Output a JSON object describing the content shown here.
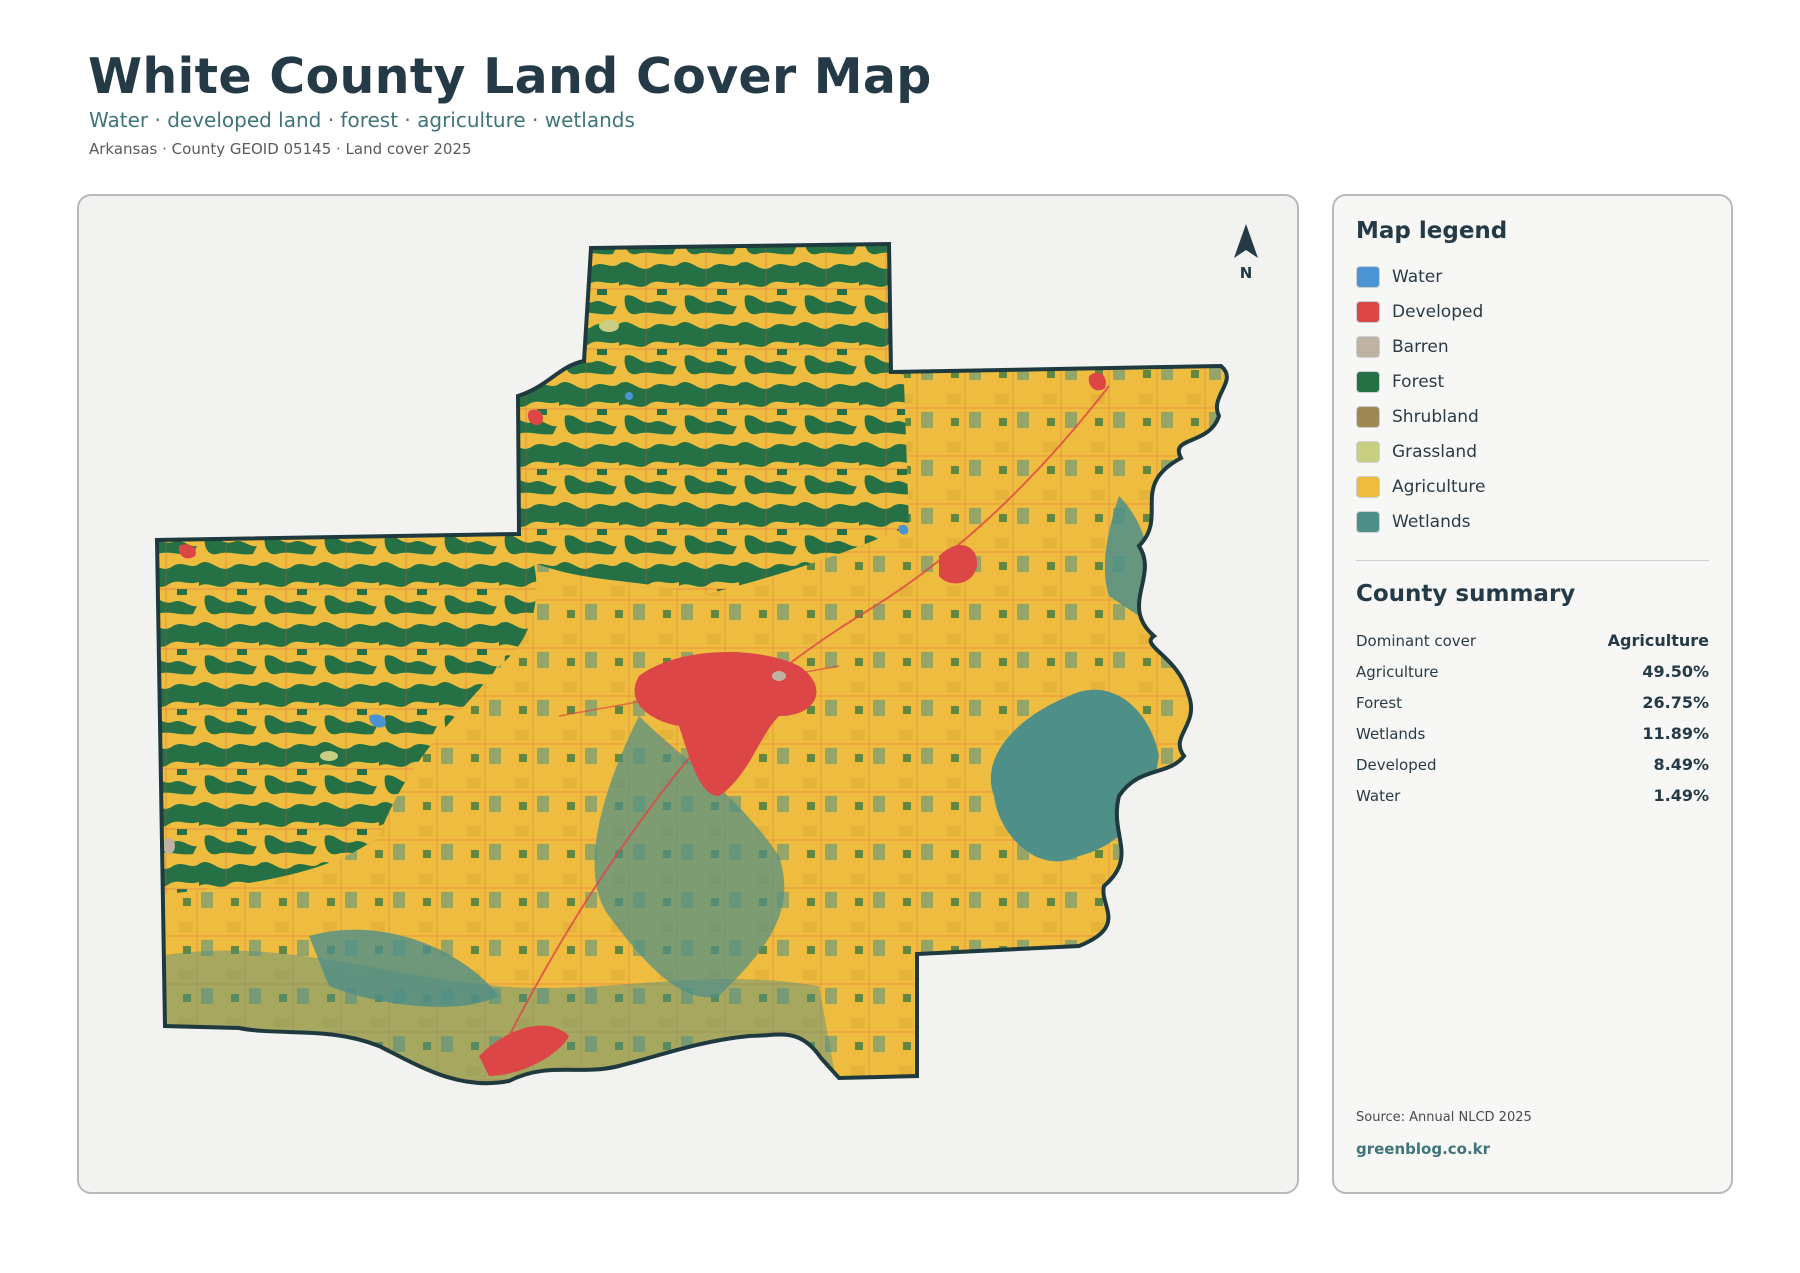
{
  "header": {
    "title": "White County Land Cover Map",
    "subtitle": "Water · developed land · forest · agriculture · wetlands",
    "meta": "Arkansas · County GEOID 05145 · Land cover 2025"
  },
  "map": {
    "north_label": "N"
  },
  "legend": {
    "title": "Map legend",
    "items": [
      {
        "label": "Water",
        "color": "#4a94d4"
      },
      {
        "label": "Developed",
        "color": "#dd4646"
      },
      {
        "label": "Barren",
        "color": "#beb3a2"
      },
      {
        "label": "Forest",
        "color": "#257145"
      },
      {
        "label": "Shrubland",
        "color": "#9f8754"
      },
      {
        "label": "Grassland",
        "color": "#c8cf83"
      },
      {
        "label": "Agriculture",
        "color": "#eebd3f"
      },
      {
        "label": "Wetlands",
        "color": "#4e8f88"
      }
    ]
  },
  "summary": {
    "title": "County summary",
    "rows": [
      {
        "key": "Dominant cover",
        "value": "Agriculture"
      },
      {
        "key": "Agriculture",
        "value": "49.50%"
      },
      {
        "key": "Forest",
        "value": "26.75%"
      },
      {
        "key": "Wetlands",
        "value": "11.89%"
      },
      {
        "key": "Developed",
        "value": "8.49%"
      },
      {
        "key": "Water",
        "value": "1.49%"
      }
    ]
  },
  "footer": {
    "source": "Source: Annual NLCD 2025",
    "brand": "greenblog.co.kr"
  }
}
